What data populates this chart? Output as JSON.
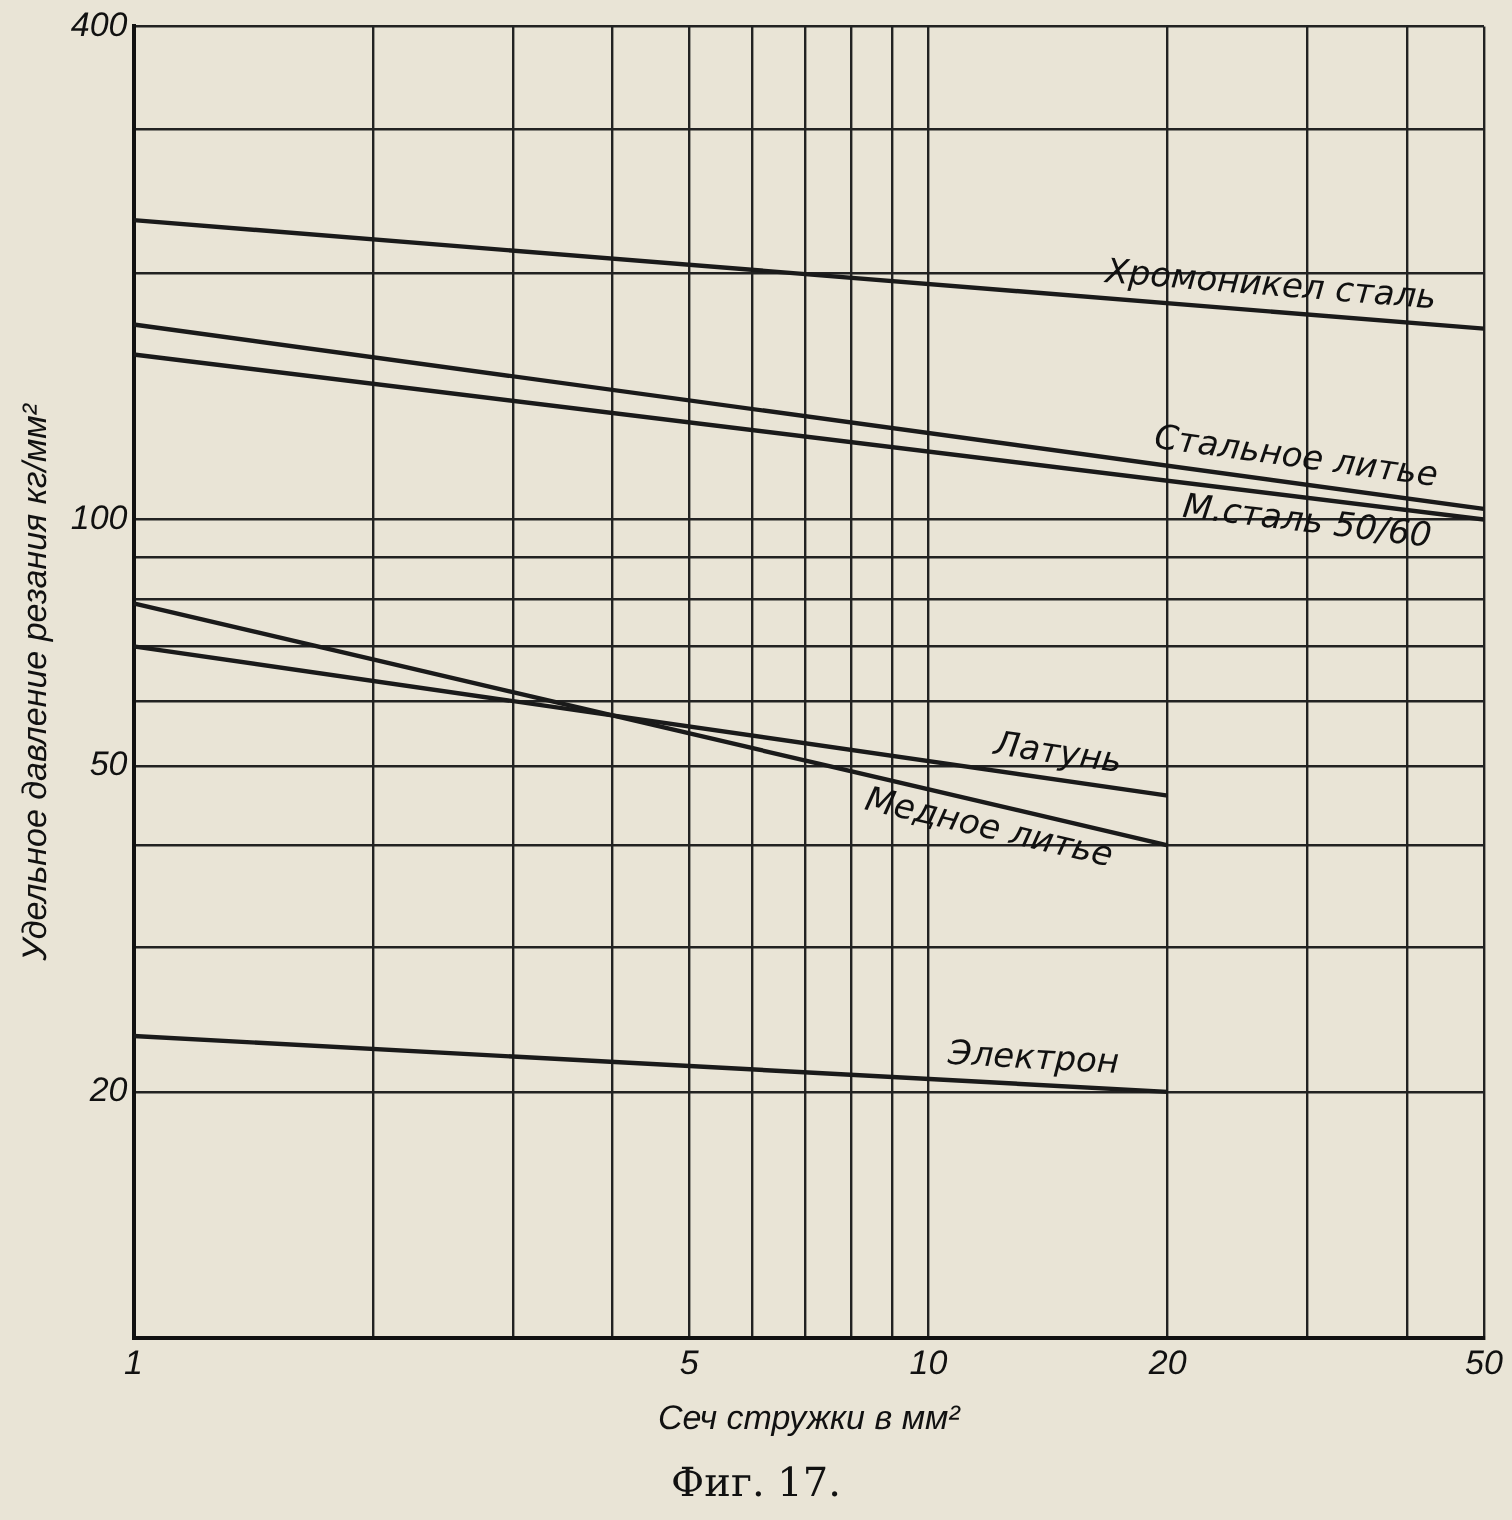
{
  "chart_data": {
    "type": "line",
    "xlabel": "Сеч стружки в мм²",
    "ylabel": "Удельное давление резания кг/мм²",
    "annotations": [
      "Фиг. 17."
    ],
    "log": "xy",
    "grid": true,
    "legend": false,
    "marker": "none",
    "line_style": "solid",
    "xlim": [
      1,
      50
    ],
    "ylim": [
      10,
      400
    ],
    "xticks": [
      1,
      {
        "value": 2,
        "label": null
      },
      {
        "value": 3,
        "label": null
      },
      {
        "value": 4,
        "label": null
      },
      5,
      {
        "value": 6,
        "label": null
      },
      {
        "value": 7,
        "label": null
      },
      {
        "value": 8,
        "label": null
      },
      {
        "value": 9,
        "label": null
      },
      10,
      20,
      {
        "value": 30,
        "label": null
      },
      {
        "value": 40,
        "label": null
      },
      50
    ],
    "yticks": [
      {
        "value": 10,
        "label": null
      },
      20,
      {
        "value": 30,
        "label": null
      },
      {
        "value": 40,
        "label": null
      },
      50,
      {
        "value": 60,
        "label": null
      },
      {
        "value": 70,
        "label": null
      },
      {
        "value": 80,
        "label": null
      },
      {
        "value": 90,
        "label": null
      },
      100,
      {
        "value": 200,
        "label": null
      },
      {
        "value": 300,
        "label": null
      },
      400
    ],
    "series": [
      {
        "name": "Хромоникел сталь",
        "color": "#1a1a1a",
        "x": [
          1,
          50
        ],
        "values": [
          232,
          171
        ]
      },
      {
        "name": "Стальное литье",
        "color": "#1a1a1a",
        "x": [
          1,
          50
        ],
        "values": [
          173,
          103
        ]
      },
      {
        "name": "М.сталь 50/60",
        "color": "#1a1a1a",
        "x": [
          1,
          50
        ],
        "values": [
          159,
          100
        ]
      },
      {
        "name": "Латунь",
        "color": "#1a1a1a",
        "x": [
          1,
          20
        ],
        "values": [
          70,
          46
        ]
      },
      {
        "name": "Медное литье",
        "color": "#1a1a1a",
        "x": [
          1,
          20
        ],
        "values": [
          79,
          40
        ]
      },
      {
        "name": "Электрон",
        "color": "#1a1a1a",
        "x": [
          1,
          20
        ],
        "values": [
          23.4,
          20
        ]
      }
    ]
  }
}
